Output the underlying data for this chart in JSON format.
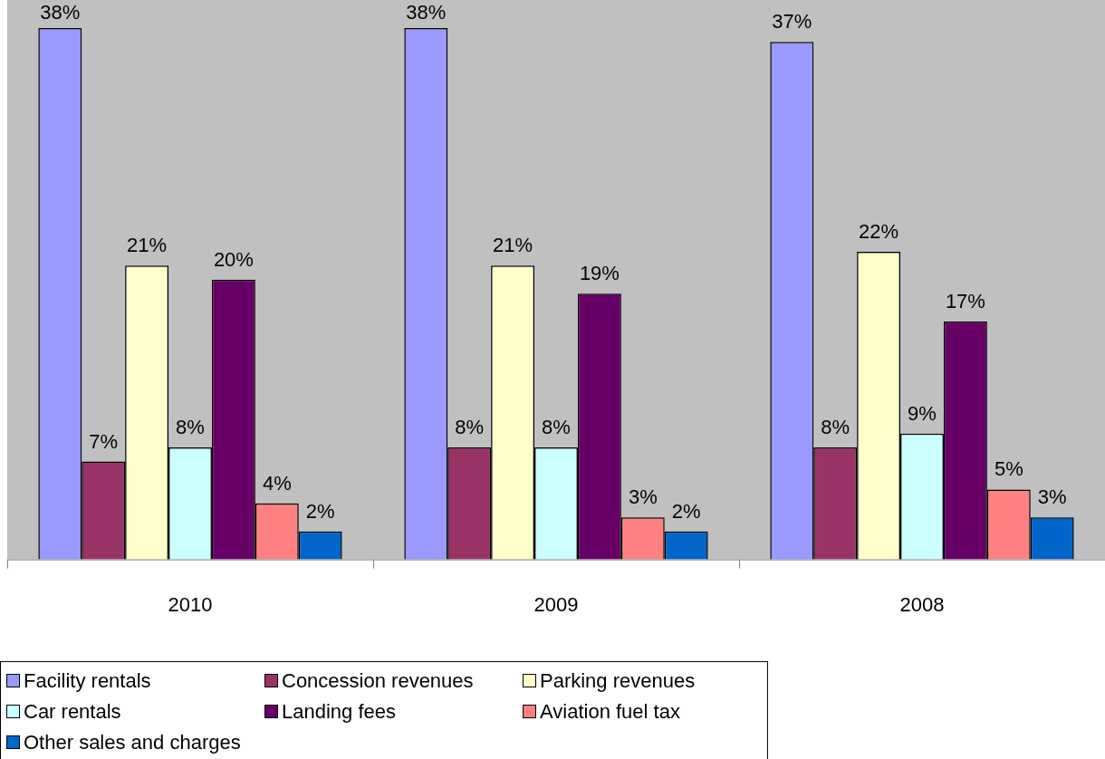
{
  "chart_data": {
    "type": "bar",
    "categories": [
      "2010",
      "2009",
      "2008"
    ],
    "ylim": [
      0,
      40
    ],
    "tick_labels": "x",
    "grid": false,
    "legend": "bottom",
    "series": [
      {
        "name": "Facility rentals",
        "color": "#9999ff",
        "values": [
          38,
          38,
          37
        ],
        "value_labels": [
          "38%",
          "38%",
          "37%"
        ]
      },
      {
        "name": "Concession revenues",
        "color": "#993366",
        "values": [
          7,
          8,
          8
        ],
        "value_labels": [
          "7%",
          "8%",
          "8%"
        ]
      },
      {
        "name": "Parking revenues",
        "color": "#ffffcc",
        "values": [
          21,
          21,
          22
        ],
        "value_labels": [
          "21%",
          "21%",
          "22%"
        ]
      },
      {
        "name": "Car rentals",
        "color": "#ccffff",
        "values": [
          8,
          8,
          9
        ],
        "value_labels": [
          "8%",
          "8%",
          "9%"
        ]
      },
      {
        "name": "Landing fees",
        "color": "#660066",
        "values": [
          20,
          19,
          17
        ],
        "value_labels": [
          "20%",
          "19%",
          "17%"
        ]
      },
      {
        "name": "Aviation fuel tax",
        "color": "#ff8080",
        "values": [
          4,
          3,
          5
        ],
        "value_labels": [
          "4%",
          "3%",
          "5%"
        ]
      },
      {
        "name": "Other sales and charges",
        "color": "#0066cc",
        "values": [
          2,
          2,
          3
        ],
        "value_labels": [
          "2%",
          "2%",
          "3%"
        ]
      }
    ]
  }
}
